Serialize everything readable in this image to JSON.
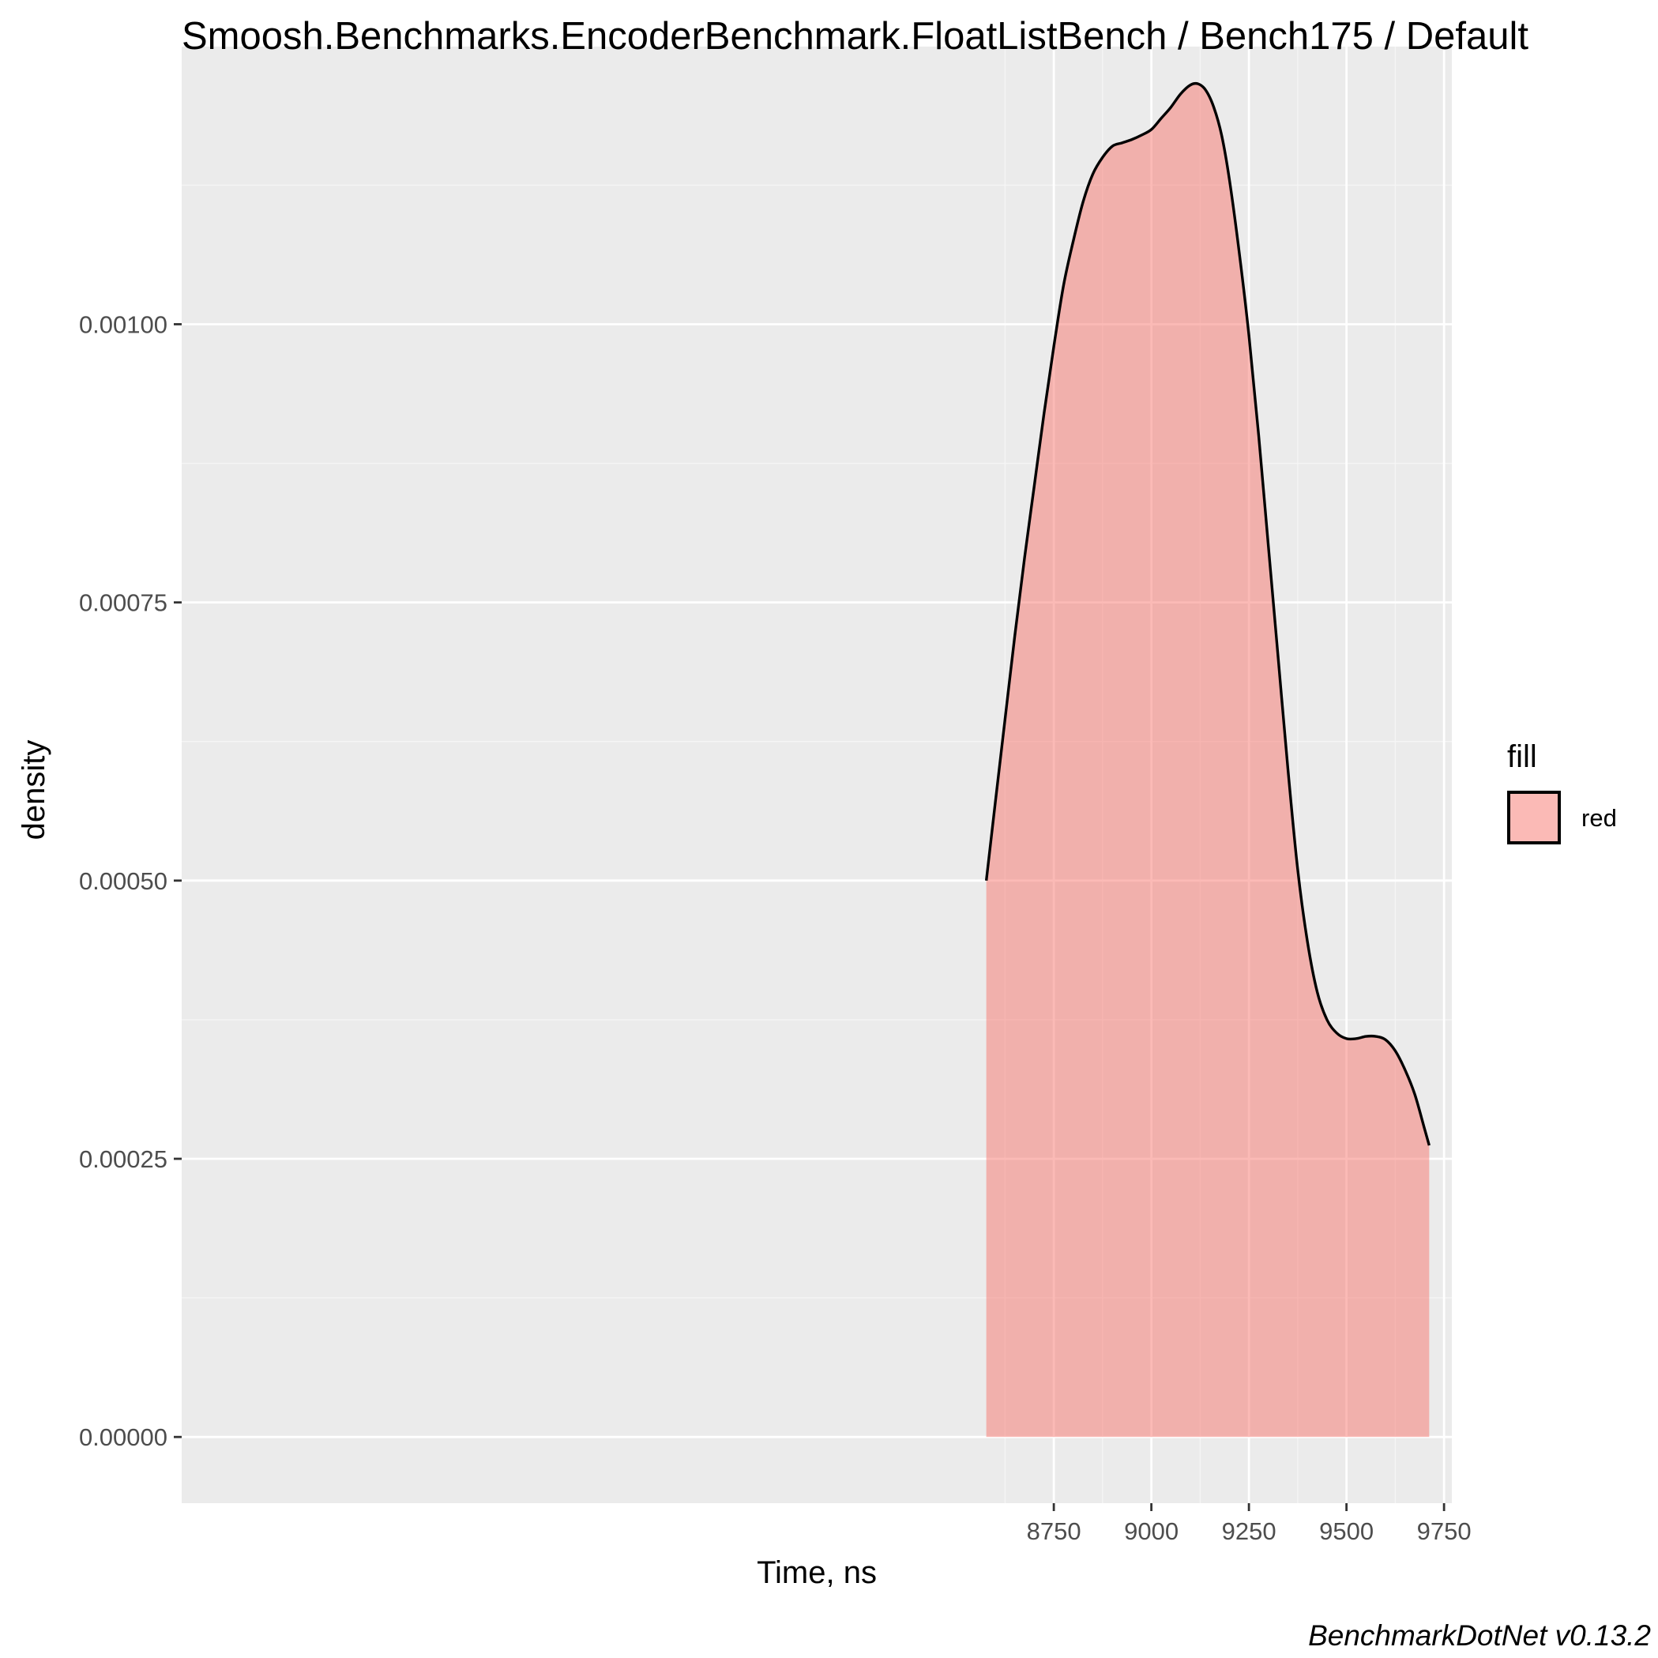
{
  "chart_data": {
    "type": "area",
    "title": "Smoosh.Benchmarks.EncoderBenchmark.FloatListBench / Bench175 / Default",
    "xlabel": "Time, ns",
    "ylabel": "density",
    "caption": "BenchmarkDotNet v0.13.2",
    "xlim": [
      6515,
      9770
    ],
    "ylim": [
      -5.95e-05,
      0.0012495
    ],
    "x_ticks": [
      8750,
      9000,
      9250,
      9500,
      9750
    ],
    "x_tick_labels": [
      "8750",
      "9000",
      "9250",
      "9500",
      "9750"
    ],
    "y_ticks": [
      0.0,
      0.00025,
      0.0005,
      0.00075,
      0.001
    ],
    "y_tick_labels": [
      "0.00000",
      "0.00025",
      "0.00050",
      "0.00075",
      "0.00100"
    ],
    "grid": true,
    "legend": {
      "title": "fill",
      "position": "right",
      "entries": [
        {
          "label": "red",
          "color": "#F8766D"
        }
      ]
    },
    "series": [
      {
        "name": "red",
        "fill_color": "#F8766D",
        "fill_opacity": 0.5,
        "line_color": "#000000",
        "x": [
          8577,
          8600,
          8625,
          8650,
          8675,
          8700,
          8725,
          8750,
          8775,
          8800,
          8825,
          8850,
          8875,
          8900,
          8925,
          8950,
          8975,
          9000,
          9025,
          9050,
          9075,
          9100,
          9120,
          9140,
          9160,
          9180,
          9200,
          9225,
          9250,
          9275,
          9300,
          9325,
          9350,
          9375,
          9400,
          9425,
          9450,
          9475,
          9500,
          9525,
          9550,
          9575,
          9600,
          9625,
          9650,
          9675,
          9700,
          9712
        ],
        "y": [
          0.0005,
          0.00057,
          0.000645,
          0.00072,
          0.00079,
          0.000855,
          0.00092,
          0.00098,
          0.001035,
          0.001075,
          0.00111,
          0.001135,
          0.00115,
          0.00116,
          0.001163,
          0.001166,
          0.00117,
          0.001175,
          0.001185,
          0.001195,
          0.001207,
          0.001215,
          0.001216,
          0.00121,
          0.001195,
          0.00117,
          0.00113,
          0.001065,
          0.00099,
          0.0009,
          0.0008,
          0.0007,
          0.0006,
          0.00051,
          0.000445,
          0.0004,
          0.000375,
          0.000363,
          0.000358,
          0.000358,
          0.00036,
          0.00036,
          0.000357,
          0.000347,
          0.00033,
          0.000308,
          0.000277,
          0.000262
        ]
      }
    ]
  },
  "colors": {
    "panel_background": "#EBEBEB",
    "grid_major": "#FFFFFF",
    "grid_minor": "#F5F5F5",
    "tick_mark": "#333333"
  }
}
